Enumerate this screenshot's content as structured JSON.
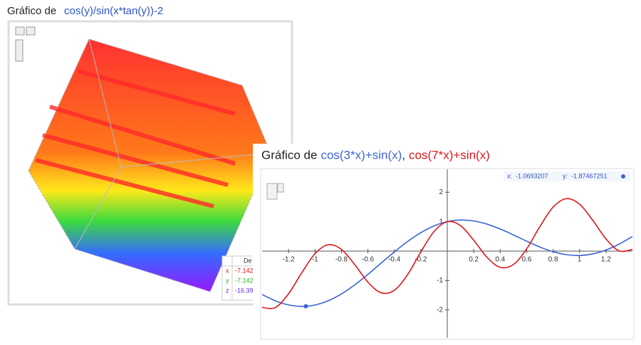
{
  "plot3d": {
    "title_prefix": "Gráfico de",
    "formula": "cos(y)/sin(x*tan(y))-2",
    "table": {
      "header": "De",
      "rows": [
        [
          "x",
          "-7.142"
        ],
        [
          "y",
          "-7.142"
        ],
        [
          "z",
          "-16.39"
        ]
      ]
    }
  },
  "chart_data": {
    "type": "line",
    "title_prefix": "Gráfico de",
    "title_separator": ",",
    "x": [
      -1.4,
      -1.3,
      -1.2,
      -1.1,
      -1.0,
      -0.9,
      -0.8,
      -0.7,
      -0.6,
      -0.5,
      -0.4,
      -0.3,
      -0.2,
      -0.1,
      0,
      0.1,
      0.2,
      0.3,
      0.4,
      0.5,
      0.6,
      0.7,
      0.8,
      0.9,
      1.0,
      1.1,
      1.2,
      1.3,
      1.4
    ],
    "series": [
      {
        "name": "cos(3*x)+sin(x)",
        "color": "#3b63d6",
        "values": [
          -1.476,
          -1.69,
          -1.829,
          -1.879,
          -1.832,
          -1.687,
          -1.455,
          -1.149,
          -0.792,
          -0.409,
          -0.027,
          0.326,
          0.627,
          0.856,
          1,
          1.055,
          1.024,
          0.917,
          0.752,
          0.55,
          0.337,
          0.139,
          -0.02,
          -0.121,
          -0.149,
          -0.096,
          0.035,
          0.238,
          0.495
        ]
      },
      {
        "name": "cos(7*x)+sin(x)",
        "color": "#e0161b",
        "values": [
          -1.916,
          -1.92,
          -1.451,
          -0.737,
          -0.088,
          0.217,
          0.058,
          -0.458,
          -1.055,
          -1.416,
          -1.331,
          -0.801,
          -0.029,
          0.665,
          1,
          0.865,
          0.369,
          -0.209,
          -0.553,
          -0.457,
          0.074,
          0.831,
          1.493,
          1.783,
          1.595,
          1.046,
          0.413,
          0.007,
          0.055
        ]
      }
    ],
    "xlim": [
      -1.4,
      1.4
    ],
    "ylim": [
      -2.95,
      2.78
    ],
    "xticks": [
      -1.2,
      -1,
      -0.8,
      -0.6,
      -0.4,
      -0.2,
      0.2,
      0.4,
      0.6,
      0.8,
      1,
      1.2
    ],
    "yticks": [
      -2,
      -1,
      1,
      2
    ],
    "cursor": {
      "labels": [
        "x:",
        "y:"
      ],
      "x": -1.0693207,
      "y": -1.87467251
    }
  }
}
